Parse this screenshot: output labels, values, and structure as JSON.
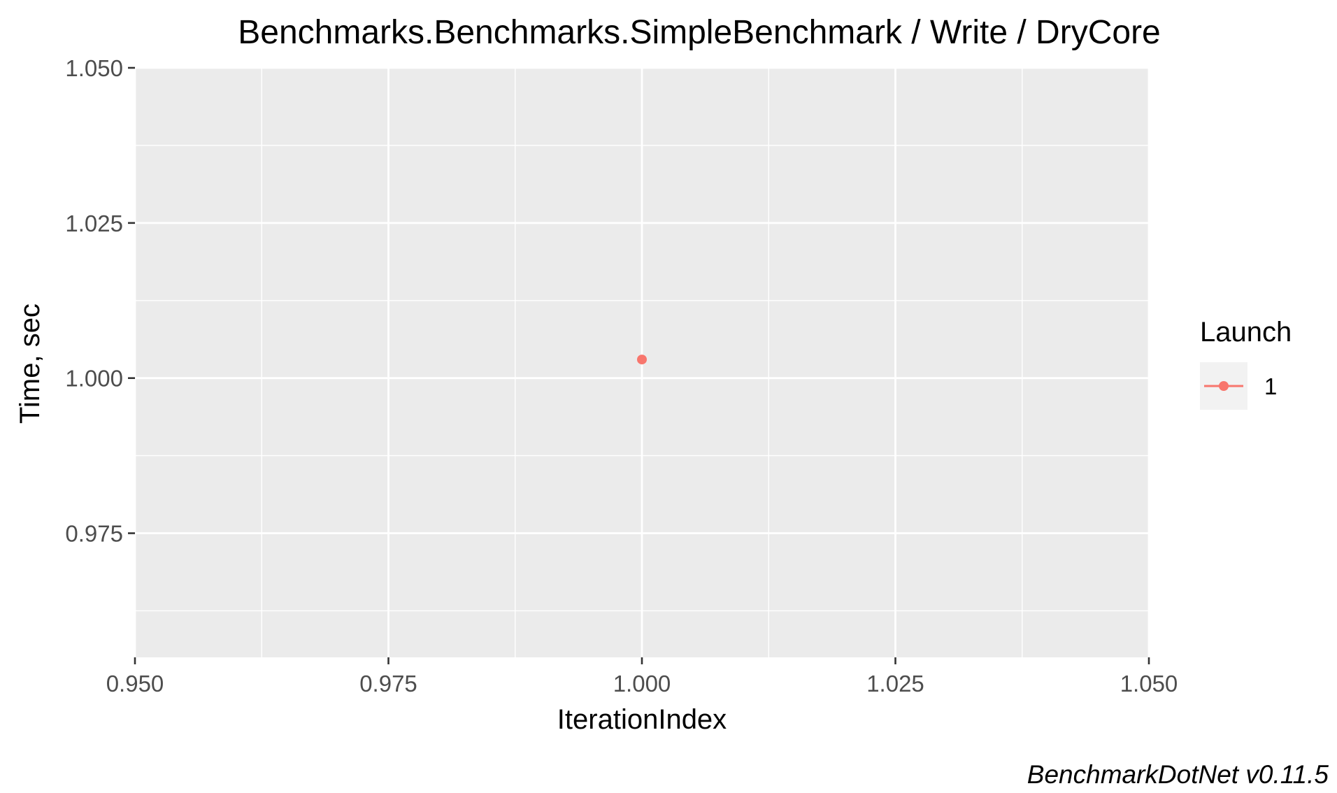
{
  "chart_data": {
    "type": "scatter",
    "title": "Benchmarks.Benchmarks.SimpleBenchmark / Write / DryCore",
    "xlabel": "IterationIndex",
    "ylabel": "Time, sec",
    "xlim": [
      0.95,
      1.05
    ],
    "ylim": [
      0.955,
      1.05
    ],
    "x_ticks": [
      0.95,
      0.975,
      1.0,
      1.025,
      1.05
    ],
    "x_tick_labels": [
      "0.950",
      "0.975",
      "1.000",
      "1.025",
      "1.050"
    ],
    "y_ticks": [
      0.975,
      1.0,
      1.025,
      1.05
    ],
    "y_tick_labels": [
      "0.975",
      "1.000",
      "1.025",
      "1.050"
    ],
    "grid": true,
    "legend": {
      "title": "Launch",
      "placement": "right"
    },
    "series": [
      {
        "name": "1",
        "color": "#f8766d",
        "x": [
          1.0
        ],
        "y": [
          1.003
        ]
      }
    ],
    "caption": "BenchmarkDotNet v0.11.5"
  },
  "colors": {
    "panel": "#ebebeb",
    "grid": "#ffffff",
    "legend_key": "#f2f2f2"
  }
}
